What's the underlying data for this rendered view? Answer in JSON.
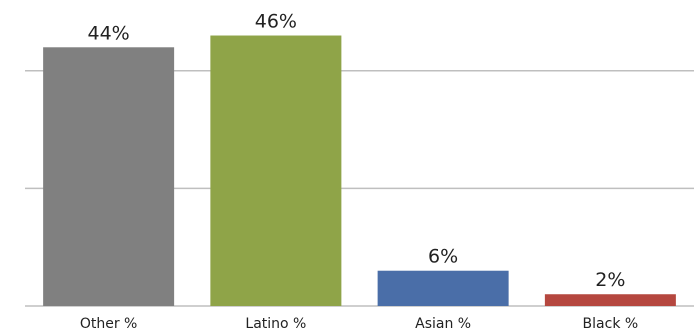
{
  "chart_data": {
    "type": "bar",
    "categories": [
      "Other %",
      "Latino %",
      "Asian %",
      "Black %"
    ],
    "values": [
      44,
      46,
      6,
      2
    ],
    "data_labels": [
      "44%",
      "46%",
      "6%",
      "2%"
    ],
    "colors": [
      "#808080",
      "#8fa448",
      "#4a6ea8",
      "#b5473f"
    ],
    "ylim": [
      0,
      50
    ],
    "gridline_values": [
      20,
      40
    ],
    "grid": true,
    "legend": "none"
  }
}
